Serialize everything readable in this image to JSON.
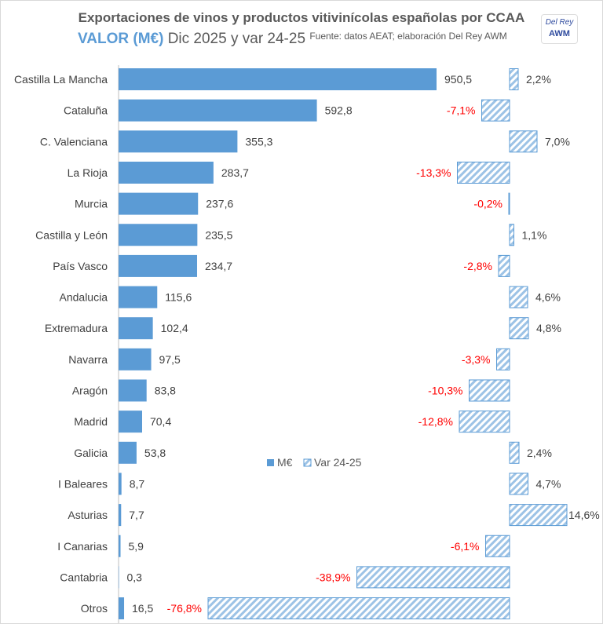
{
  "header": {
    "title": "Exportaciones de vinos y productos vitivinícolas españolas por CCAA",
    "subtitle_highlight": "VALOR (M€)",
    "subtitle_rest": "Dic 2025 y var 24-25",
    "source": "Fuente: datos AEAT; elaboración Del Rey AWM"
  },
  "logo": {
    "line1": "Del Rey",
    "line2": "AWM"
  },
  "chart_data": {
    "type": "bar",
    "orientation": "horizontal",
    "categories": [
      "Castilla La Mancha",
      "Cataluña",
      "C. Valenciana",
      "La Rioja",
      "Murcia",
      "Castilla y León",
      "País Vasco",
      "Andalucia",
      "Extremadura",
      "Navarra",
      "Aragón",
      "Madrid",
      "Galicia",
      "I Baleares",
      "Asturias",
      "I Canarias",
      "Cantabria",
      "Otros"
    ],
    "series": [
      {
        "name": "M€",
        "values": [
          950.5,
          592.8,
          355.3,
          283.7,
          237.6,
          235.5,
          234.7,
          115.6,
          102.4,
          97.5,
          83.8,
          70.4,
          53.8,
          8.7,
          7.7,
          5.9,
          0.3,
          16.5
        ],
        "labels": [
          "950,5",
          "592,8",
          "355,3",
          "283,7",
          "237,6",
          "235,5",
          "234,7",
          "115,6",
          "102,4",
          "97,5",
          "83,8",
          "70,4",
          "53,8",
          "8,7",
          "7,7",
          "5,9",
          "0,3",
          "16,5"
        ],
        "color": "#5b9bd5"
      },
      {
        "name": "Var 24-25",
        "values": [
          2.2,
          -7.1,
          7.0,
          -13.3,
          -0.2,
          1.1,
          -2.8,
          4.6,
          4.8,
          -3.3,
          -10.3,
          -12.8,
          2.4,
          4.7,
          14.6,
          -6.1,
          -38.9,
          -76.8
        ],
        "labels": [
          "2,2%",
          "-7,1%",
          "7,0%",
          "-13,3%",
          "-0,2%",
          "1,1%",
          "-2,8%",
          "4,6%",
          "4,8%",
          "-3,3%",
          "-10,3%",
          "-12,8%",
          "2,4%",
          "4,7%",
          "14,6%",
          "-6,1%",
          "-38,9%",
          "-76,8%"
        ],
        "color": "#9dc3e6",
        "pattern": "diagonal-hatch"
      }
    ],
    "negative_label_color": "#ff0000",
    "legend": "center",
    "grid": false
  }
}
